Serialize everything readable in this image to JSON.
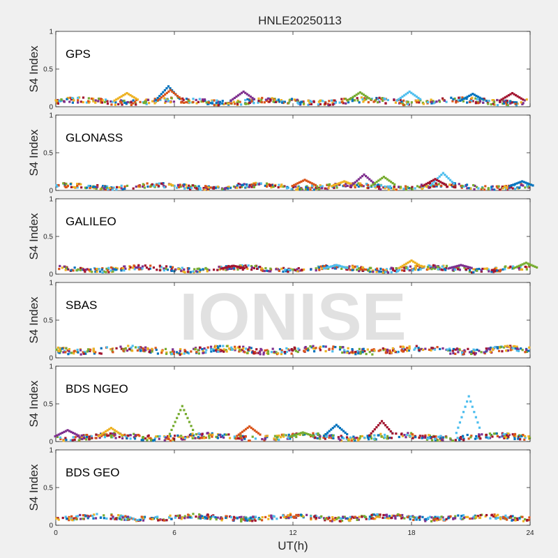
{
  "title": "HNLE20250113",
  "watermark": "IONISE",
  "chart_data": {
    "type": "scatter",
    "title": "HNLE20250113",
    "xlabel": "UT(h)",
    "xlim": [
      0,
      24
    ],
    "xticks": [
      0,
      6,
      12,
      18,
      24
    ],
    "ylabel": "S4 Index",
    "ylim": [
      0,
      1
    ],
    "yticks": [
      0,
      0.5,
      1
    ],
    "grid": false,
    "series_colors": [
      "#0072BD",
      "#D95319",
      "#EDB120",
      "#7E2F8E",
      "#77AC30",
      "#4DBEEE",
      "#A2142F"
    ],
    "panels": [
      {
        "name": "GPS",
        "baseline": 0.07,
        "spread": 0.035,
        "features": [
          {
            "x": 5.7,
            "y": 0.27
          },
          {
            "x": 5.8,
            "y": 0.22
          },
          {
            "x": 3.6,
            "y": 0.18
          },
          {
            "x": 9.5,
            "y": 0.2
          },
          {
            "x": 15.4,
            "y": 0.19
          },
          {
            "x": 17.9,
            "y": 0.2
          },
          {
            "x": 23.1,
            "y": 0.18
          },
          {
            "x": 21.1,
            "y": 0.17
          }
        ]
      },
      {
        "name": "GLONASS",
        "baseline": 0.05,
        "spread": 0.03,
        "features": [
          {
            "x": 12.6,
            "y": 0.14
          },
          {
            "x": 14.6,
            "y": 0.12
          },
          {
            "x": 15.6,
            "y": 0.21
          },
          {
            "x": 16.6,
            "y": 0.18
          },
          {
            "x": 19.6,
            "y": 0.23
          },
          {
            "x": 19.2,
            "y": 0.15
          },
          {
            "x": 23.6,
            "y": 0.12
          }
        ]
      },
      {
        "name": "GALILEO",
        "baseline": 0.07,
        "spread": 0.03,
        "features": [
          {
            "x": 18.0,
            "y": 0.18
          },
          {
            "x": 20.5,
            "y": 0.12
          },
          {
            "x": 23.8,
            "y": 0.15
          },
          {
            "x": 14.2,
            "y": 0.12
          },
          {
            "x": 9.0,
            "y": 0.11
          }
        ]
      },
      {
        "name": "SBAS",
        "baseline": 0.1,
        "spread": 0.04,
        "features": []
      },
      {
        "name": "BDS NGEO",
        "baseline": 0.06,
        "spread": 0.035,
        "features": [
          {
            "x": 6.4,
            "y": 0.47
          },
          {
            "x": 20.9,
            "y": 0.6
          },
          {
            "x": 16.5,
            "y": 0.27
          },
          {
            "x": 14.2,
            "y": 0.22
          },
          {
            "x": 9.8,
            "y": 0.2
          },
          {
            "x": 2.8,
            "y": 0.18
          },
          {
            "x": 0.6,
            "y": 0.15
          },
          {
            "x": 12.5,
            "y": 0.12
          }
        ]
      },
      {
        "name": "BDS GEO",
        "baseline": 0.1,
        "spread": 0.03,
        "features": []
      }
    ]
  }
}
